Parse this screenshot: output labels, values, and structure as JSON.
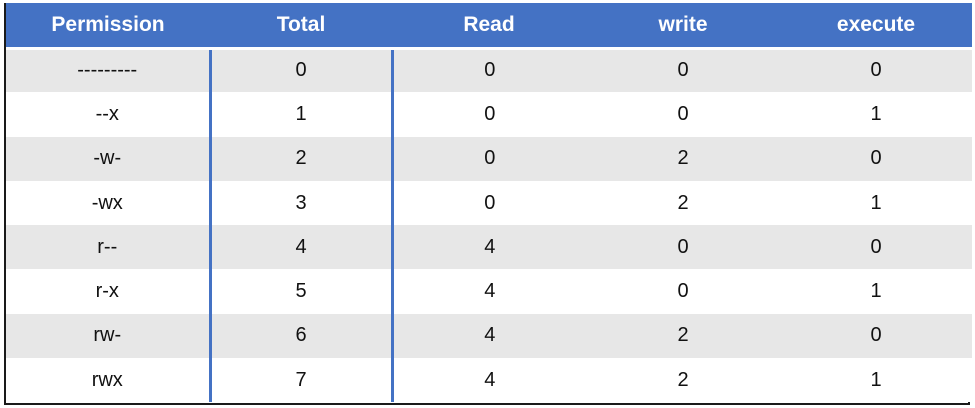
{
  "table": {
    "headers": [
      "Permission",
      "Total",
      "Read",
      "write",
      "execute"
    ],
    "rows": [
      [
        "---------",
        "0",
        "0",
        "0",
        "0"
      ],
      [
        "--x",
        "1",
        "0",
        "0",
        "1"
      ],
      [
        "-w-",
        "2",
        "0",
        "2",
        "0"
      ],
      [
        "-wx",
        "3",
        "0",
        "2",
        "1"
      ],
      [
        "r--",
        "4",
        "4",
        "0",
        "0"
      ],
      [
        "r-x",
        "5",
        "4",
        "0",
        "1"
      ],
      [
        "rw-",
        "6",
        "4",
        "2",
        "0"
      ],
      [
        "rwx",
        "7",
        "4",
        "2",
        "1"
      ]
    ]
  },
  "colors": {
    "header_bg": "#4472c4",
    "header_text": "#ffffff",
    "row_alt_bg": "#e7e7e7",
    "row_bg": "#ffffff",
    "divider": "#4472c4"
  }
}
